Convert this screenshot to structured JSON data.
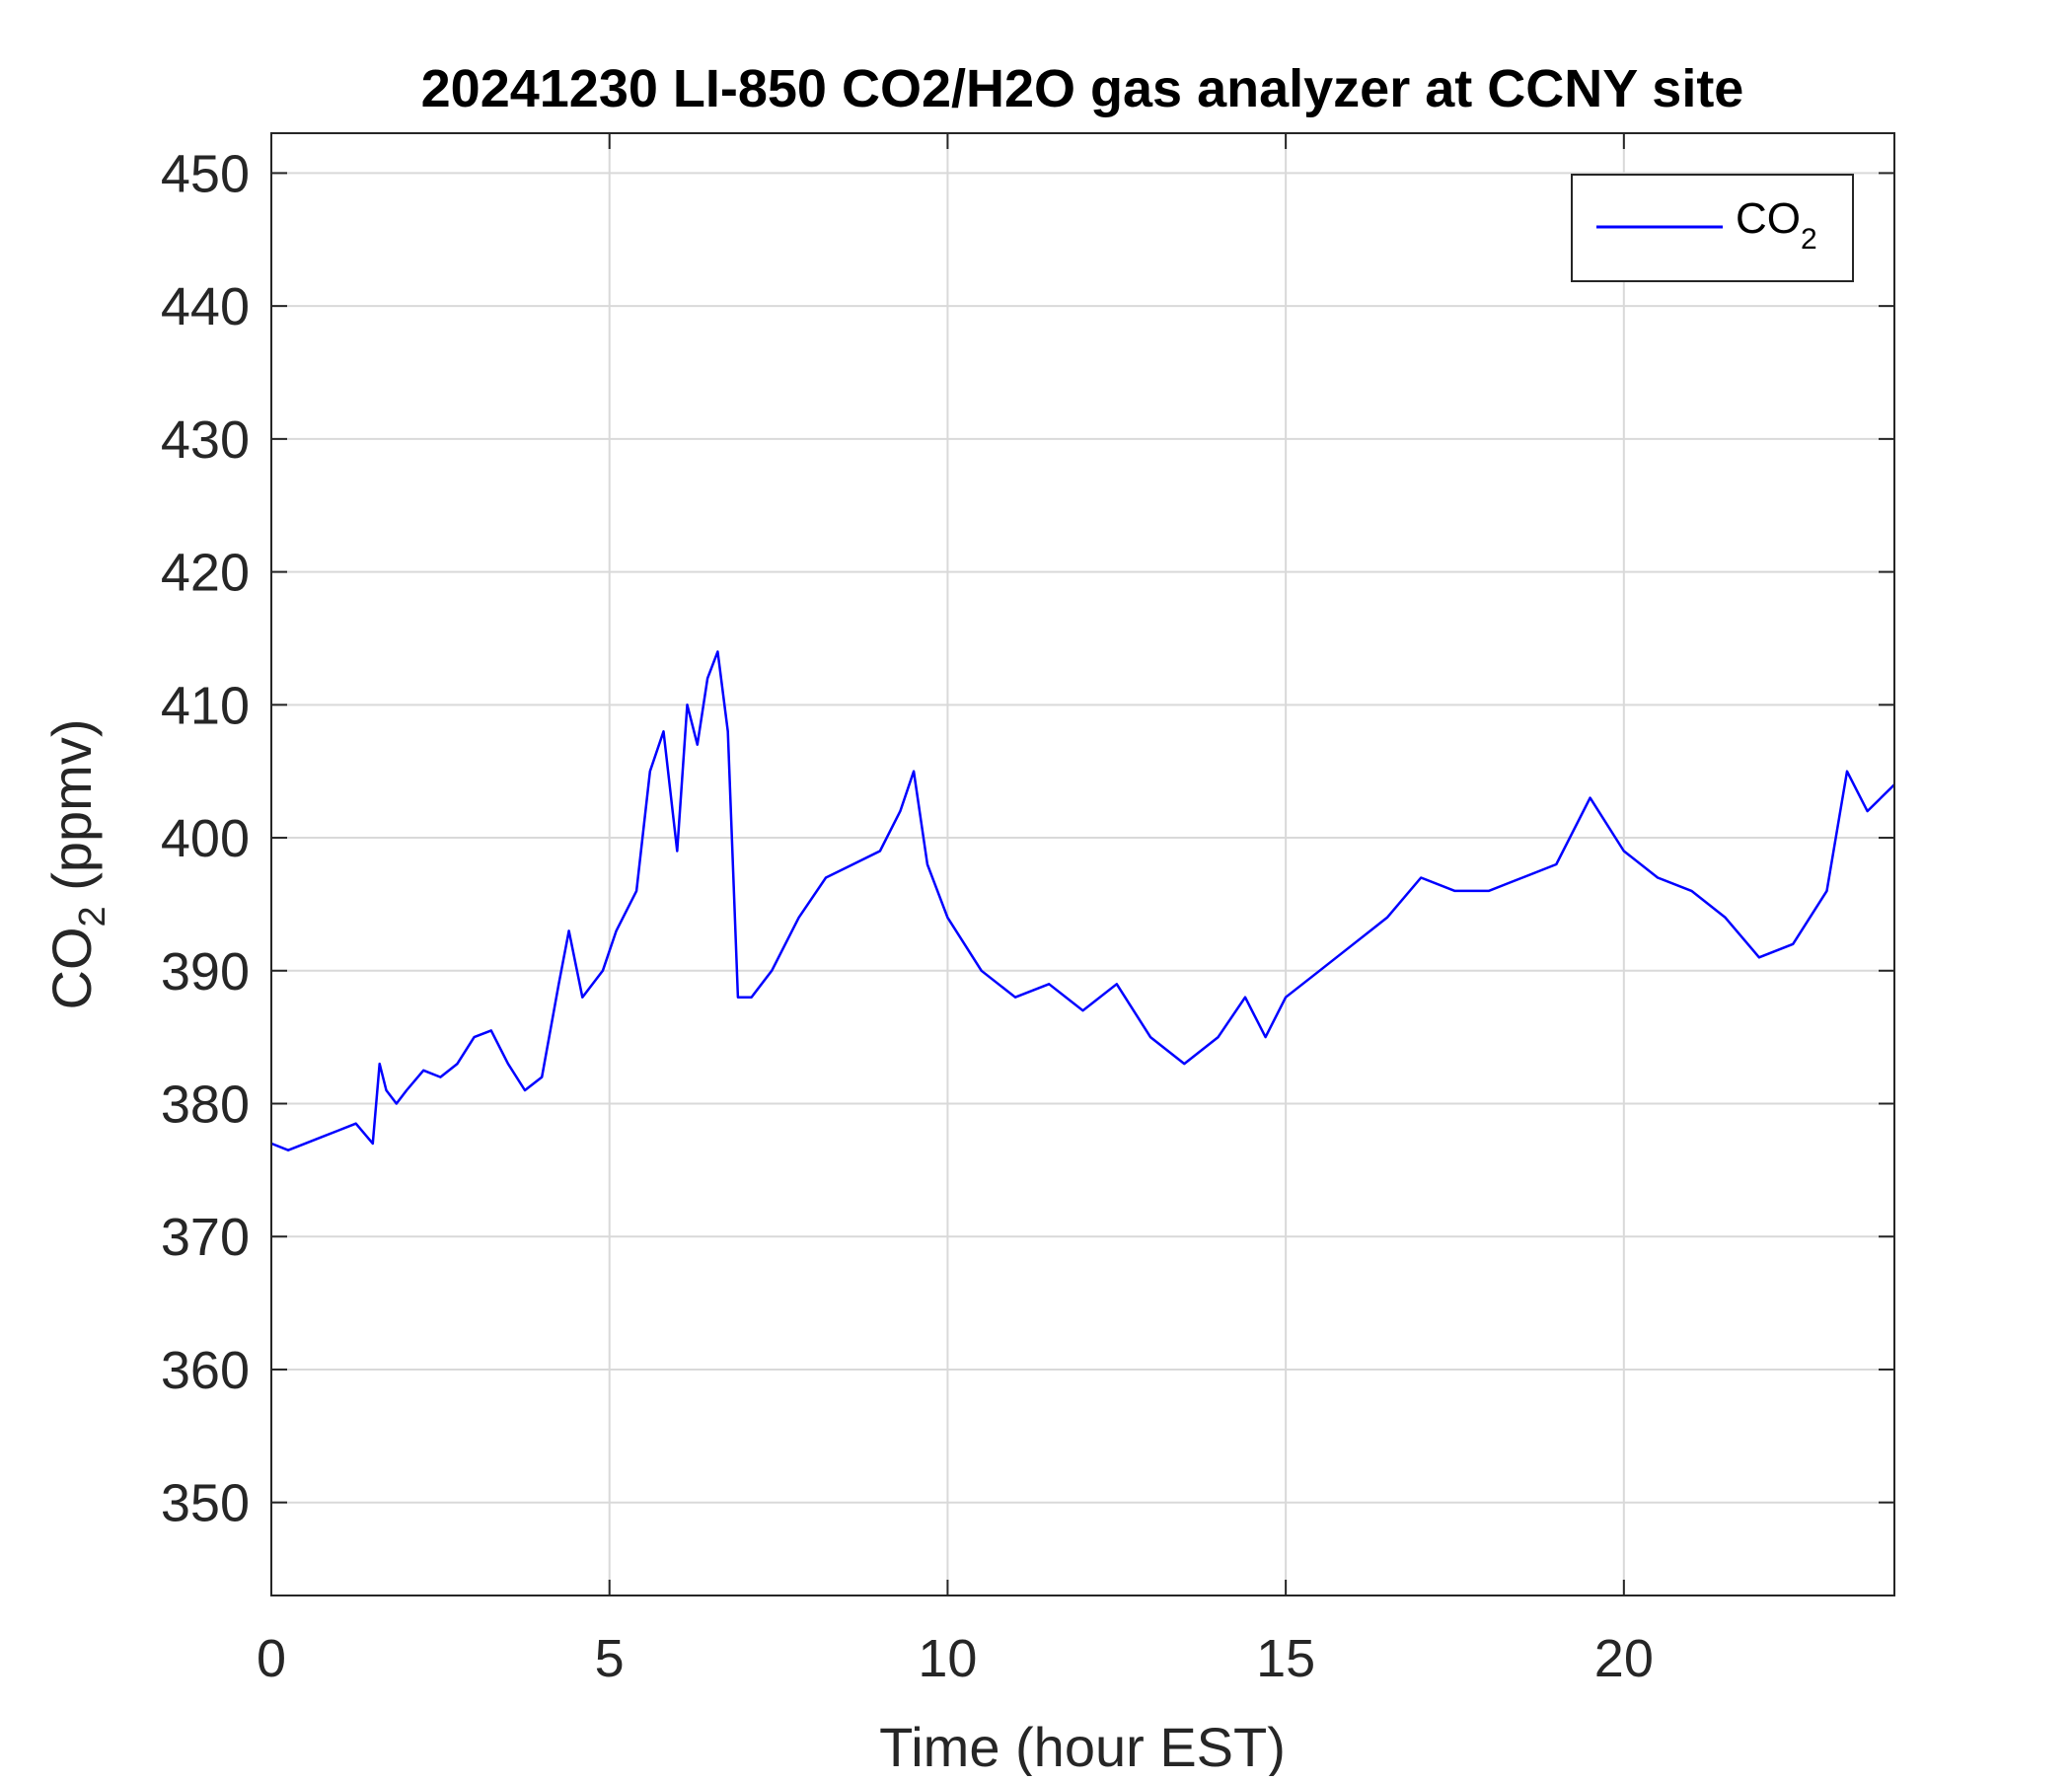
{
  "chart_data": {
    "type": "line",
    "title": "20241230 LI-850 CO2/H2O gas analyzer at CCNY site",
    "xlabel": "Time (hour EST)",
    "ylabel": {
      "main": "CO",
      "sub": "2",
      "suffix": " (ppmv)"
    },
    "xlim": [
      0,
      24
    ],
    "ylim": [
      343,
      453
    ],
    "xticks": [
      0,
      5,
      10,
      15,
      20
    ],
    "yticks": [
      350,
      360,
      370,
      380,
      390,
      400,
      410,
      420,
      430,
      440,
      450
    ],
    "grid": true,
    "legend": {
      "placement": "top-right",
      "entries": [
        {
          "main": "CO",
          "sub": "2"
        }
      ]
    },
    "colors": {
      "series": "#0000ff",
      "axis": "#262626",
      "grid": "#d9d9d9",
      "background": "#ffffff"
    },
    "series": [
      {
        "name": "CO2",
        "x": [
          0,
          0.25,
          0.5,
          0.75,
          1.0,
          1.25,
          1.5,
          1.6,
          1.7,
          1.85,
          2.0,
          2.25,
          2.5,
          2.75,
          3.0,
          3.25,
          3.5,
          3.75,
          4.0,
          4.25,
          4.4,
          4.6,
          4.9,
          5.1,
          5.4,
          5.6,
          5.8,
          6.0,
          6.15,
          6.3,
          6.45,
          6.6,
          6.75,
          6.9,
          7.1,
          7.4,
          7.8,
          8.2,
          8.6,
          9.0,
          9.3,
          9.5,
          9.7,
          10.0,
          10.5,
          11.0,
          11.5,
          12.0,
          12.5,
          13.0,
          13.5,
          14.0,
          14.4,
          14.7,
          15.0,
          15.5,
          16.0,
          16.5,
          17.0,
          17.5,
          18.0,
          18.5,
          19.0,
          19.5,
          20.0,
          20.5,
          21.0,
          21.5,
          22.0,
          22.5,
          23.0,
          23.3,
          23.6,
          24.0
        ],
        "y": [
          377,
          376.5,
          377,
          377.5,
          378,
          378.5,
          377,
          383,
          381,
          380,
          381,
          382.5,
          382,
          383,
          385,
          385.5,
          383,
          381,
          382,
          389,
          393,
          388,
          390,
          393,
          396,
          405,
          408,
          399,
          410,
          407,
          412,
          414,
          408,
          388,
          388,
          390,
          394,
          397,
          398,
          399,
          402,
          405,
          398,
          394,
          390,
          388,
          389,
          387,
          389,
          385,
          383,
          385,
          388,
          385,
          388,
          390,
          392,
          394,
          397,
          396,
          396,
          397,
          398,
          403,
          399,
          397,
          396,
          394,
          391,
          392,
          396,
          405,
          402,
          404
        ]
      }
    ]
  }
}
